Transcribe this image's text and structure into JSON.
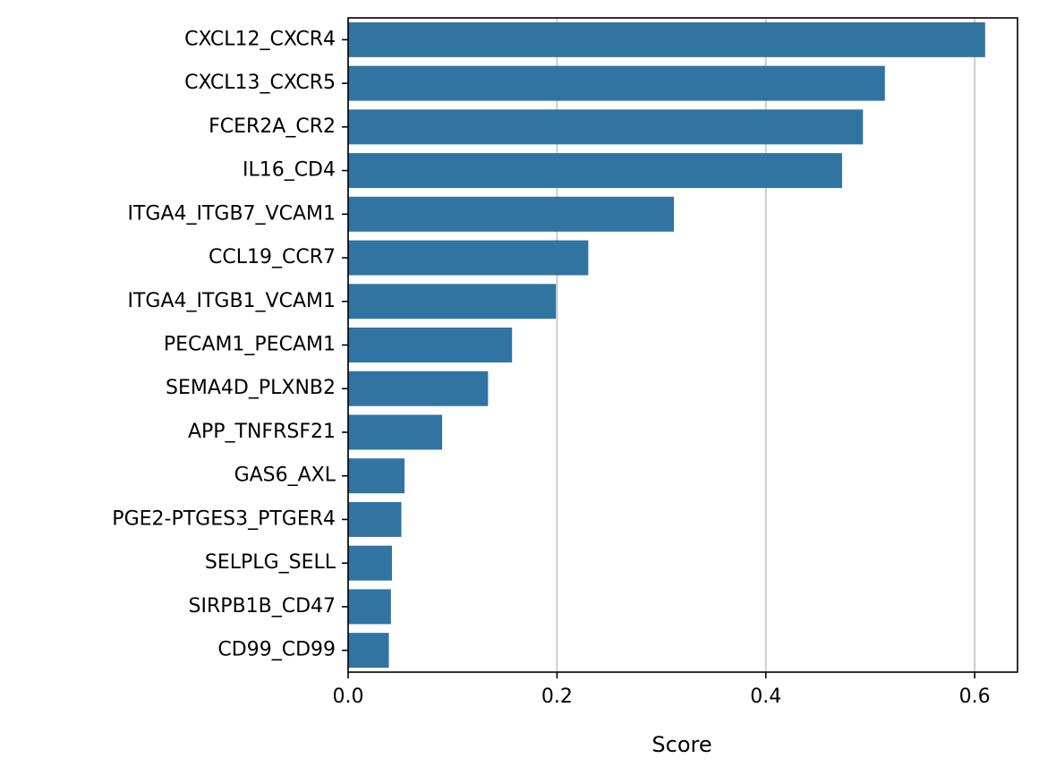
{
  "chart_data": {
    "type": "bar",
    "orientation": "horizontal",
    "x_label": "Score",
    "categories": [
      "CXCL12_CXCR4",
      "CXCL13_CXCR5",
      "FCER2A_CR2",
      "IL16_CD4",
      "ITGA4_ITGB7_VCAM1",
      "CCL19_CCR7",
      "ITGA4_ITGB1_VCAM1",
      "PECAM1_PECAM1",
      "SEMA4D_PLXNB2",
      "APP_TNFRSF21",
      "GAS6_AXL",
      "PGE2-PTGES3_PTGER4",
      "SELPLG_SELL",
      "SIRPB1B_CD47",
      "CD99_CD99"
    ],
    "values": [
      0.61,
      0.514,
      0.493,
      0.473,
      0.312,
      0.23,
      0.199,
      0.157,
      0.134,
      0.09,
      0.054,
      0.051,
      0.042,
      0.041,
      0.039
    ],
    "color": "#3274a1",
    "xlim": [
      0,
      0.641
    ],
    "xticks": [
      {
        "value": 0,
        "label": "0.0"
      },
      0.2,
      0.4,
      0.6
    ],
    "grid": true
  }
}
